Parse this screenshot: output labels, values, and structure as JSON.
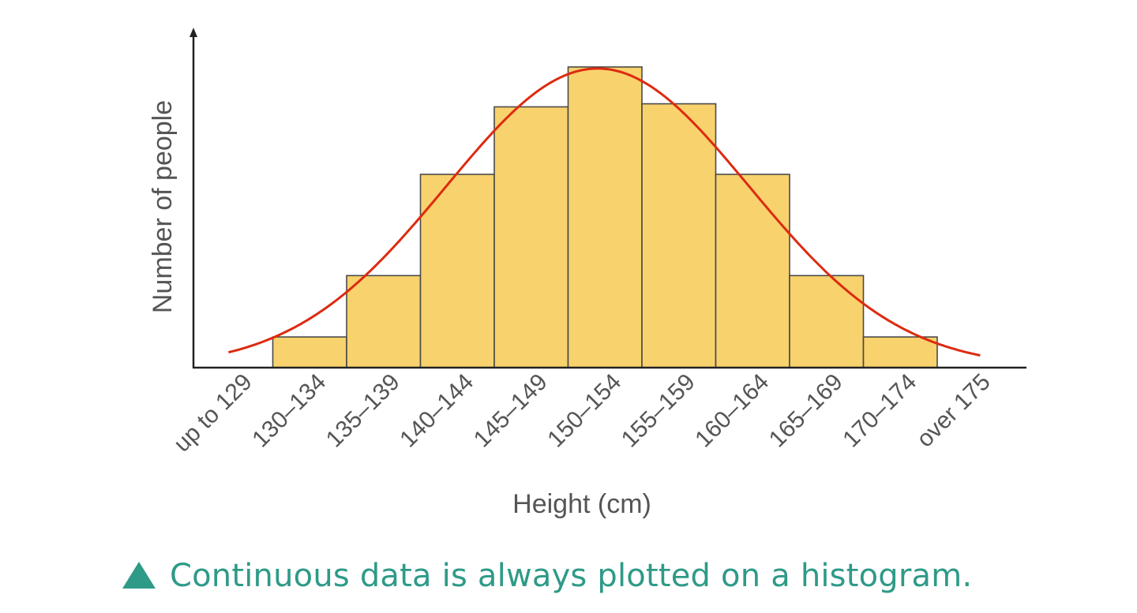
{
  "chart_data": {
    "type": "bar",
    "xlabel": "Height (cm)",
    "ylabel": "Number of people",
    "categories": [
      "up to 129",
      "130–134",
      "135–139",
      "140–144",
      "145–149",
      "150–154",
      "155–159",
      "160–164",
      "165–169",
      "170–174",
      "over 175"
    ],
    "values": [
      0,
      1,
      3,
      6.3,
      8.5,
      9.8,
      8.6,
      6.3,
      3,
      1,
      0
    ],
    "ylim": [
      0,
      10.8
    ],
    "bar_color": "#f8d26c",
    "bar_edge_color": "#4a4a4a",
    "curve_color": "#dd2a10",
    "axis_color": "#222222",
    "label_color": "#555555",
    "grid": false,
    "curve": {
      "type": "normal",
      "peak": 9.75,
      "mean_bin": 5.4,
      "sd_bins": 2.05
    }
  },
  "caption": {
    "text": "Continuous data is always plotted on a histogram.",
    "color": "#2e9a87",
    "icon": "triangle-up-icon"
  }
}
